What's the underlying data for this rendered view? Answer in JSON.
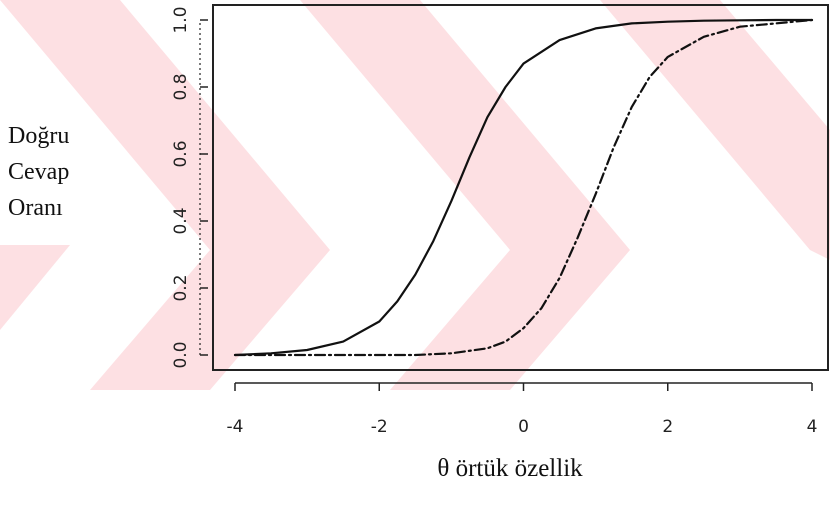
{
  "colors": {
    "watermark": "#fde0e3",
    "axis": "#222222",
    "curve": "#111111"
  },
  "icons": [
    "watermark-logo-icon"
  ],
  "chart_data": {
    "type": "line",
    "title": "",
    "xlabel": "θ örtük özellik",
    "ylabel_lines": [
      "Doğru",
      "Cevap",
      "Oranı"
    ],
    "xlim": [
      -4,
      4
    ],
    "ylim": [
      0,
      1
    ],
    "x_ticks": [
      -4,
      -2,
      0,
      2,
      4
    ],
    "x_tick_labels": [
      "-4",
      "-2",
      "0",
      "2",
      "4"
    ],
    "y_ticks": [
      0,
      0.2,
      0.4,
      0.6,
      0.8,
      1.0
    ],
    "y_tick_labels": [
      "0.0",
      "0.2",
      "0.4",
      "0.6",
      "0.8",
      "1.0"
    ],
    "grid": false,
    "legend": "none",
    "series": [
      {
        "style": "solid",
        "x": [
          -4,
          -3.5,
          -3,
          -2.5,
          -2,
          -1.75,
          -1.5,
          -1.25,
          -1,
          -0.75,
          -0.5,
          -0.25,
          0,
          0.5,
          1,
          1.5,
          2,
          2.5,
          3,
          3.5,
          4
        ],
        "y": [
          0.0,
          0.005,
          0.015,
          0.04,
          0.1,
          0.16,
          0.24,
          0.34,
          0.46,
          0.59,
          0.71,
          0.8,
          0.87,
          0.94,
          0.975,
          0.99,
          0.995,
          0.998,
          0.999,
          1.0,
          1.0
        ]
      },
      {
        "style": "dash-dot",
        "x": [
          -4,
          -3,
          -2,
          -1.5,
          -1,
          -0.5,
          -0.25,
          0,
          0.25,
          0.5,
          0.75,
          1,
          1.25,
          1.5,
          1.75,
          2,
          2.5,
          3,
          3.5,
          4
        ],
        "y": [
          0.0,
          0.0,
          0.0,
          0.0,
          0.005,
          0.02,
          0.04,
          0.08,
          0.14,
          0.23,
          0.35,
          0.48,
          0.62,
          0.74,
          0.83,
          0.89,
          0.95,
          0.98,
          0.99,
          1.0
        ]
      }
    ]
  }
}
